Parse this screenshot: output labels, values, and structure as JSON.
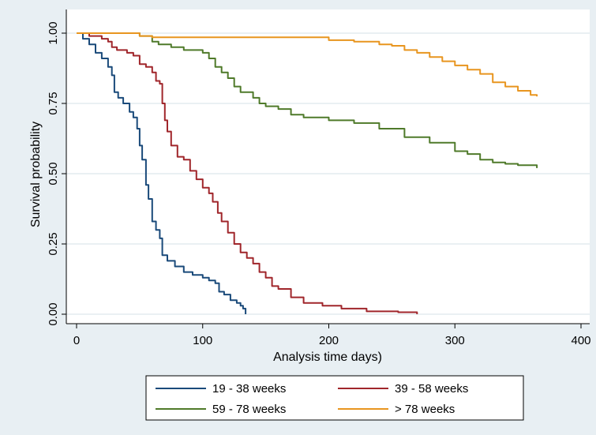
{
  "chart_data": {
    "type": "line",
    "title": "",
    "xlabel": "Analysis time days)",
    "ylabel": "Survival probability",
    "xlim": [
      0,
      400
    ],
    "ylim": [
      0,
      1
    ],
    "xticks": [
      0,
      100,
      200,
      300,
      400
    ],
    "yticks": [
      0,
      0.25,
      0.5,
      0.75,
      1
    ],
    "xtick_labels": [
      "0",
      "100",
      "200",
      "300",
      "400"
    ],
    "ytick_labels": [
      "0.00",
      "0.25",
      "0.50",
      "0.75",
      "1.00"
    ],
    "grid": true,
    "legend_position": "bottom",
    "step": true,
    "series": [
      {
        "name": "19 - 38 weeks",
        "color": "#1a4a7a",
        "points": [
          [
            0,
            1.0
          ],
          [
            5,
            0.98
          ],
          [
            10,
            0.96
          ],
          [
            15,
            0.93
          ],
          [
            20,
            0.91
          ],
          [
            25,
            0.88
          ],
          [
            28,
            0.85
          ],
          [
            30,
            0.79
          ],
          [
            33,
            0.77
          ],
          [
            37,
            0.75
          ],
          [
            42,
            0.72
          ],
          [
            45,
            0.7
          ],
          [
            48,
            0.66
          ],
          [
            50,
            0.6
          ],
          [
            52,
            0.55
          ],
          [
            55,
            0.46
          ],
          [
            57,
            0.41
          ],
          [
            60,
            0.33
          ],
          [
            63,
            0.3
          ],
          [
            66,
            0.27
          ],
          [
            68,
            0.21
          ],
          [
            72,
            0.19
          ],
          [
            78,
            0.17
          ],
          [
            85,
            0.15
          ],
          [
            92,
            0.14
          ],
          [
            100,
            0.13
          ],
          [
            105,
            0.12
          ],
          [
            110,
            0.11
          ],
          [
            113,
            0.08
          ],
          [
            117,
            0.07
          ],
          [
            122,
            0.05
          ],
          [
            127,
            0.04
          ],
          [
            130,
            0.03
          ],
          [
            132,
            0.02
          ],
          [
            134,
            0.0
          ]
        ]
      },
      {
        "name": "39 - 58 weeks",
        "color": "#a0262b",
        "points": [
          [
            0,
            1.0
          ],
          [
            10,
            0.99
          ],
          [
            20,
            0.98
          ],
          [
            25,
            0.97
          ],
          [
            28,
            0.95
          ],
          [
            32,
            0.94
          ],
          [
            40,
            0.93
          ],
          [
            45,
            0.92
          ],
          [
            50,
            0.89
          ],
          [
            55,
            0.88
          ],
          [
            60,
            0.86
          ],
          [
            63,
            0.83
          ],
          [
            66,
            0.82
          ],
          [
            68,
            0.75
          ],
          [
            70,
            0.69
          ],
          [
            72,
            0.65
          ],
          [
            75,
            0.6
          ],
          [
            80,
            0.56
          ],
          [
            85,
            0.55
          ],
          [
            90,
            0.51
          ],
          [
            95,
            0.48
          ],
          [
            100,
            0.45
          ],
          [
            105,
            0.43
          ],
          [
            108,
            0.4
          ],
          [
            112,
            0.36
          ],
          [
            115,
            0.33
          ],
          [
            120,
            0.29
          ],
          [
            125,
            0.25
          ],
          [
            130,
            0.22
          ],
          [
            135,
            0.2
          ],
          [
            140,
            0.18
          ],
          [
            145,
            0.15
          ],
          [
            150,
            0.13
          ],
          [
            155,
            0.1
          ],
          [
            160,
            0.09
          ],
          [
            170,
            0.06
          ],
          [
            180,
            0.04
          ],
          [
            195,
            0.03
          ],
          [
            210,
            0.02
          ],
          [
            230,
            0.01
          ],
          [
            255,
            0.007
          ],
          [
            270,
            0.0
          ]
        ]
      },
      {
        "name": "59 - 78 weeks",
        "color": "#4f7a2a",
        "points": [
          [
            0,
            1.0
          ],
          [
            30,
            1.0
          ],
          [
            50,
            0.99
          ],
          [
            60,
            0.97
          ],
          [
            65,
            0.96
          ],
          [
            75,
            0.95
          ],
          [
            85,
            0.94
          ],
          [
            100,
            0.93
          ],
          [
            105,
            0.91
          ],
          [
            110,
            0.88
          ],
          [
            115,
            0.86
          ],
          [
            120,
            0.84
          ],
          [
            125,
            0.81
          ],
          [
            130,
            0.79
          ],
          [
            140,
            0.77
          ],
          [
            145,
            0.75
          ],
          [
            150,
            0.74
          ],
          [
            160,
            0.73
          ],
          [
            170,
            0.71
          ],
          [
            180,
            0.7
          ],
          [
            200,
            0.69
          ],
          [
            220,
            0.68
          ],
          [
            240,
            0.66
          ],
          [
            260,
            0.63
          ],
          [
            280,
            0.61
          ],
          [
            300,
            0.58
          ],
          [
            310,
            0.57
          ],
          [
            320,
            0.55
          ],
          [
            330,
            0.54
          ],
          [
            340,
            0.535
          ],
          [
            350,
            0.53
          ],
          [
            365,
            0.52
          ]
        ]
      },
      {
        "name": "> 78 weeks",
        "color": "#e8951f",
        "points": [
          [
            0,
            1.0
          ],
          [
            40,
            1.0
          ],
          [
            50,
            0.99
          ],
          [
            60,
            0.985
          ],
          [
            80,
            0.985
          ],
          [
            100,
            0.985
          ],
          [
            130,
            0.985
          ],
          [
            160,
            0.985
          ],
          [
            180,
            0.985
          ],
          [
            200,
            0.975
          ],
          [
            220,
            0.97
          ],
          [
            240,
            0.96
          ],
          [
            250,
            0.955
          ],
          [
            260,
            0.94
          ],
          [
            270,
            0.93
          ],
          [
            280,
            0.915
          ],
          [
            290,
            0.9
          ],
          [
            300,
            0.885
          ],
          [
            310,
            0.87
          ],
          [
            320,
            0.855
          ],
          [
            330,
            0.825
          ],
          [
            340,
            0.81
          ],
          [
            350,
            0.795
          ],
          [
            360,
            0.78
          ],
          [
            365,
            0.775
          ]
        ]
      }
    ]
  }
}
